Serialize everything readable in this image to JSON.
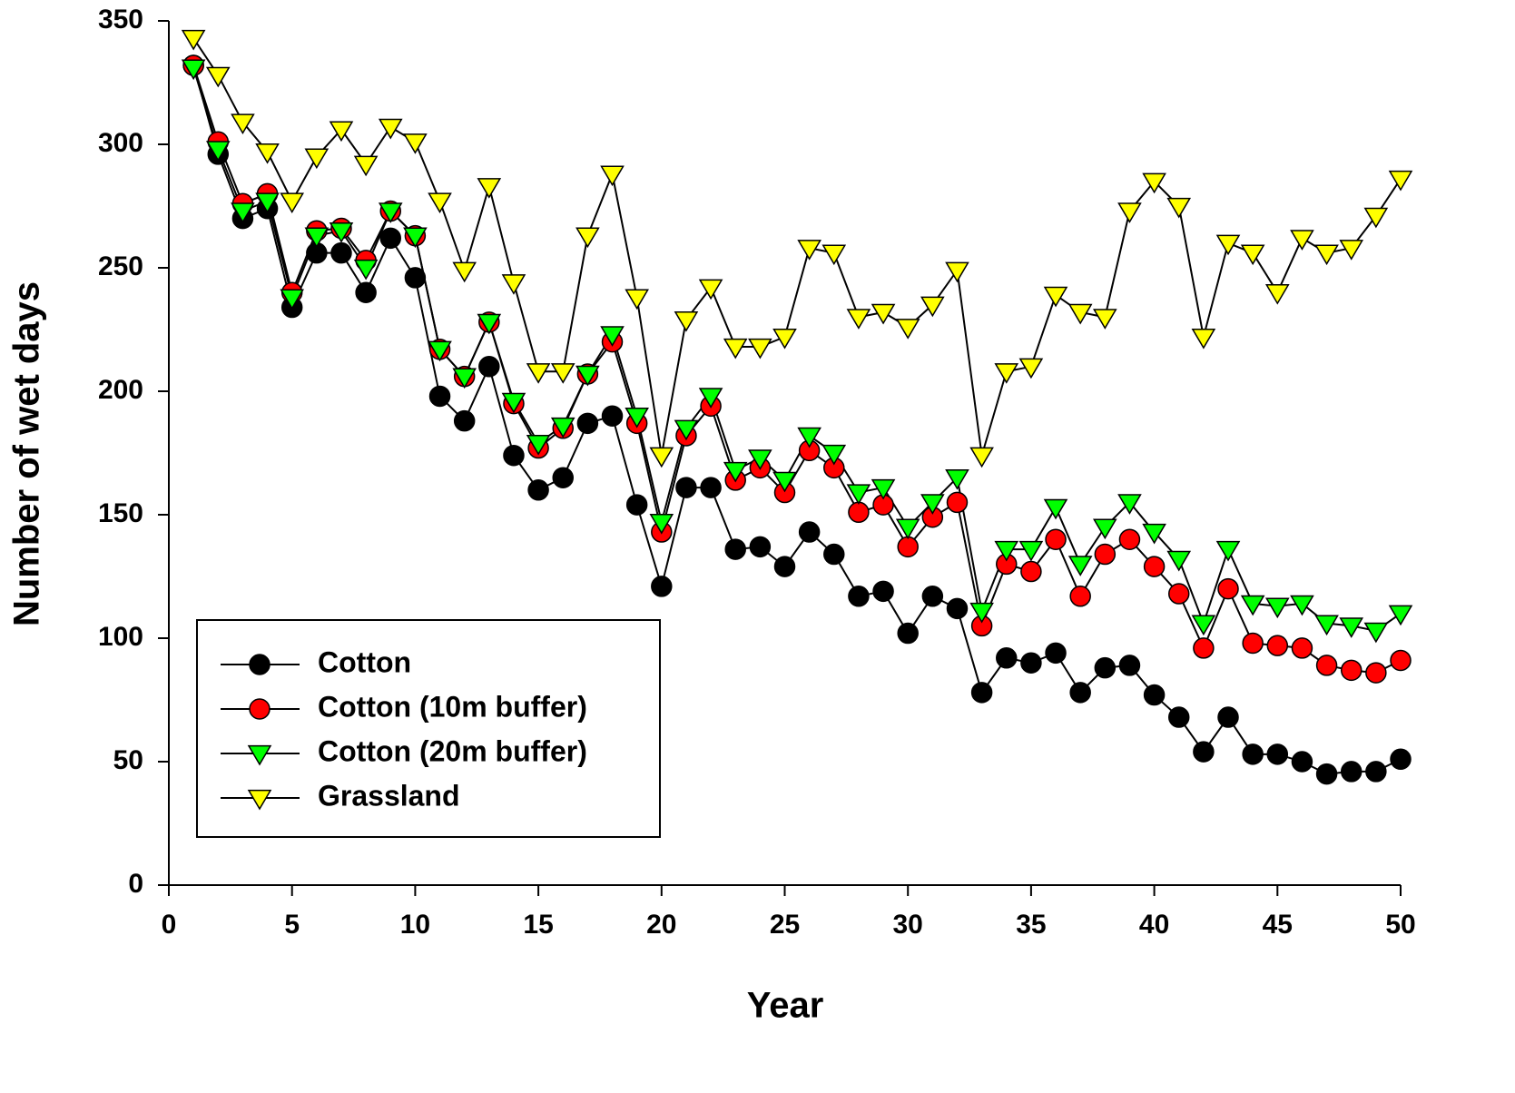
{
  "chart_data": {
    "type": "line",
    "xlabel": "Year",
    "ylabel": "Number of wet days",
    "x": [
      1,
      2,
      3,
      4,
      5,
      6,
      7,
      8,
      9,
      10,
      11,
      12,
      13,
      14,
      15,
      16,
      17,
      18,
      19,
      20,
      21,
      22,
      23,
      24,
      25,
      26,
      27,
      28,
      29,
      30,
      31,
      32,
      33,
      34,
      35,
      36,
      37,
      38,
      39,
      40,
      41,
      42,
      43,
      44,
      45,
      46,
      47,
      48,
      49,
      50
    ],
    "xlim": [
      0,
      50
    ],
    "xticks": [
      0,
      5,
      10,
      15,
      20,
      25,
      30,
      35,
      40,
      45,
      50
    ],
    "ylim": [
      0,
      350
    ],
    "yticks": [
      0,
      50,
      100,
      150,
      200,
      250,
      300,
      350
    ],
    "grid": false,
    "legend": "lower left",
    "line_color": "#000000",
    "series": [
      {
        "name": "Cotton",
        "color": "#000000",
        "marker": "circle",
        "values": [
          332,
          296,
          270,
          274,
          234,
          256,
          256,
          240,
          262,
          246,
          198,
          188,
          210,
          174,
          160,
          165,
          187,
          190,
          154,
          121,
          161,
          161,
          136,
          137,
          129,
          143,
          134,
          117,
          119,
          102,
          117,
          112,
          78,
          92,
          90,
          94,
          78,
          88,
          89,
          77,
          68,
          54,
          68,
          53,
          53,
          50,
          45,
          46,
          46,
          51
        ]
      },
      {
        "name": "Cotton (10m buffer)",
        "color": "#ff0000",
        "marker": "circle",
        "values": [
          332,
          301,
          276,
          280,
          240,
          265,
          266,
          253,
          273,
          263,
          217,
          206,
          228,
          195,
          177,
          185,
          207,
          220,
          187,
          143,
          182,
          194,
          164,
          169,
          159,
          176,
          169,
          151,
          154,
          137,
          149,
          155,
          105,
          130,
          127,
          140,
          117,
          134,
          140,
          129,
          118,
          96,
          120,
          98,
          97,
          96,
          89,
          87,
          86,
          91
        ]
      },
      {
        "name": "Cotton (20m buffer)",
        "color": "#00ff00",
        "marker": "triangle-down",
        "values": [
          331,
          298,
          273,
          277,
          238,
          263,
          265,
          250,
          273,
          263,
          217,
          206,
          228,
          196,
          179,
          186,
          207,
          223,
          190,
          147,
          185,
          198,
          168,
          173,
          164,
          182,
          175,
          159,
          161,
          145,
          155,
          165,
          111,
          136,
          136,
          153,
          130,
          145,
          155,
          143,
          132,
          106,
          136,
          114,
          113,
          114,
          106,
          105,
          103,
          110
        ]
      },
      {
        "name": "Grassland",
        "color": "#ffff00",
        "marker": "triangle-down",
        "values": [
          343,
          328,
          309,
          297,
          277,
          295,
          306,
          292,
          307,
          301,
          277,
          249,
          283,
          244,
          208,
          208,
          263,
          288,
          238,
          174,
          229,
          242,
          218,
          218,
          222,
          258,
          256,
          230,
          232,
          226,
          235,
          249,
          174,
          208,
          210,
          239,
          232,
          230,
          273,
          285,
          275,
          222,
          260,
          256,
          240,
          262,
          256,
          258,
          271,
          286
        ]
      }
    ]
  }
}
